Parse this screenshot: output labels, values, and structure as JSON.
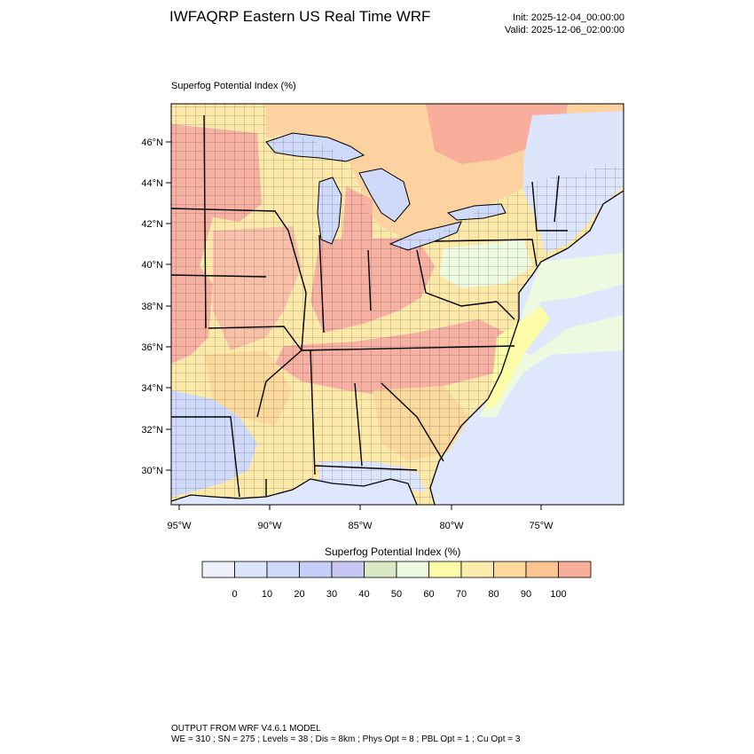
{
  "header": {
    "title": "IWFAQRP Eastern US Real Time WRF",
    "init": "Init: 2025-12-04_00:00:00",
    "valid": "Valid: 2025-12-06_02:00:00"
  },
  "plot": {
    "field_label": "Superfog Potential Index   (%)",
    "lat_labels": [
      "46°N",
      "44°N",
      "42°N",
      "40°N",
      "38°N",
      "36°N",
      "34°N",
      "32°N",
      "30°N"
    ],
    "lon_labels": [
      "95°W",
      "90°W",
      "85°W",
      "80°W",
      "75°W"
    ]
  },
  "legend": {
    "title": "Superfog Potential Index  (%)",
    "tick_labels": [
      "0",
      "10",
      "20",
      "30",
      "40",
      "50",
      "60",
      "70",
      "80",
      "90",
      "100"
    ],
    "colors": [
      "#eef1fa",
      "#dde5fb",
      "#cfd9f9",
      "#c6cdf7",
      "#c8c6f2",
      "#dbe8c6",
      "#eefadf",
      "#fbfba8",
      "#fcecac",
      "#fbd99c",
      "#fbc491",
      "#f8ae9b"
    ]
  },
  "footer": {
    "line1": "OUTPUT FROM WRF V4.6.1 MODEL",
    "line2": "WE = 310 ; SN = 275 ; Levels = 38 ; Dis = 8km ; Phys Opt = 8 ; PBL Opt = 1 ; Cu Opt = 3"
  },
  "map_colors": {
    "ocean": "#dfe7fd",
    "high": "#f6b1a2",
    "mid_high": "#fbd99c",
    "mid": "#fce9a9",
    "low_mid": "#fbfba8",
    "light": "#eefadf",
    "low": "#cfd9f9",
    "lake": "#cfd9f9",
    "canada": "#fbd2a0"
  }
}
